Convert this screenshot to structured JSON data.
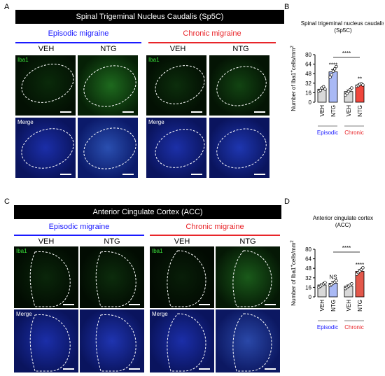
{
  "panel_letters": {
    "a": "A",
    "b": "B",
    "c": "C",
    "d": "D"
  },
  "top": {
    "banner": "Spinal Trigeminal Nucleus Caudalis (Sp5C)",
    "episodic": "Episodic migraine",
    "chronic": "Chronic migraine",
    "groups": [
      "VEH",
      "NTG",
      "VEH",
      "NTG"
    ],
    "row_labels": {
      "iba1": "Iba1",
      "merge": "Merge"
    }
  },
  "bottom": {
    "banner": "Anterior Cingulate Cortex (ACC)",
    "episodic": "Episodic migraine",
    "chronic": "Chronic migraine",
    "groups": [
      "VEH",
      "NTG",
      "VEH",
      "NTG"
    ],
    "row_labels": {
      "iba1": "Iba1",
      "merge": "Merge"
    }
  },
  "colors": {
    "episodic": "#1a1aff",
    "chronic": "#e8252a",
    "veh_bar": "#d9d9d9",
    "ntg_ep_bar": "#a9b9f5",
    "ntg_ch_bar": "#f0463c",
    "ntg_ch_bar_acc": "#e3584b",
    "iba1_green": "#3ce63c",
    "dapi_blue": "#1a2fd6"
  },
  "chart_data": [
    {
      "type": "bar",
      "title": "Spinal trigeminal nucleus caudalis (Sp5C)",
      "ylabel": "Number of Iba1+cells/mm2",
      "ylabel_main": "Number of Iba1",
      "ylabel_sup": "+",
      "ylabel_mid": "cells/mm",
      "ylabel_sup2": "2",
      "ylim": [
        0,
        80
      ],
      "yticks": [
        "0",
        "16",
        "32",
        "48",
        "64",
        "80"
      ],
      "categories": [
        "VEH",
        "NTG",
        "VEH",
        "NTG"
      ],
      "values": [
        22,
        51,
        18,
        29
      ],
      "errors": [
        3,
        4,
        2.5,
        2
      ],
      "points": [
        [
          18,
          20,
          24,
          26,
          22
        ],
        [
          42,
          46,
          52,
          56,
          60
        ],
        [
          12,
          15,
          18,
          21,
          24
        ],
        [
          27,
          28,
          30,
          31,
          29
        ]
      ],
      "significance": [
        "",
        "****",
        "",
        "**"
      ],
      "bracket": "****",
      "groups": [
        {
          "label": "Episodic",
          "color": "#1a1aff"
        },
        {
          "label": "Chronic",
          "color": "#e8252a"
        }
      ]
    },
    {
      "type": "bar",
      "title": "Anterior cingulate cortex (ACC)",
      "ylabel": "Number of Iba1+cells/mm2",
      "ylabel_main": "Number of Iba1",
      "ylabel_sup": "+",
      "ylabel_mid": "cells/mm",
      "ylabel_sup2": "2",
      "ylim": [
        0,
        80
      ],
      "yticks": [
        "0",
        "16",
        "32",
        "48",
        "64",
        "80"
      ],
      "categories": [
        "VEH",
        "NTG",
        "VEH",
        "NTG"
      ],
      "values": [
        20,
        23,
        18,
        43
      ],
      "errors": [
        2,
        2.5,
        2,
        3
      ],
      "points": [
        [
          16,
          18,
          20,
          22,
          24
        ],
        [
          19,
          21,
          23,
          25,
          27
        ],
        [
          14,
          16,
          18,
          20,
          22
        ],
        [
          38,
          41,
          43,
          46,
          49
        ]
      ],
      "significance": [
        "",
        "NS",
        "",
        "****"
      ],
      "bracket": "****",
      "groups": [
        {
          "label": "Episodic",
          "color": "#1a1aff"
        },
        {
          "label": "Chronic",
          "color": "#e8252a"
        }
      ]
    }
  ]
}
